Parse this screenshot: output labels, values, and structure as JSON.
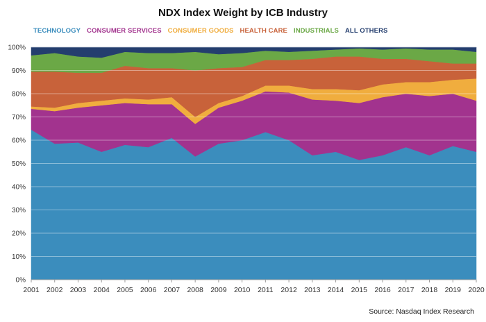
{
  "chart_data": {
    "type": "area",
    "stacked": true,
    "title": "NDX Index Weight by ICB Industry",
    "xlabel": "",
    "ylabel": "",
    "ylim": [
      0,
      100
    ],
    "y_tick_labels": [
      "0%",
      "10%",
      "20%",
      "30%",
      "40%",
      "50%",
      "60%",
      "70%",
      "80%",
      "90%",
      "100%"
    ],
    "x": [
      "2001",
      "2002",
      "2003",
      "2004",
      "2005",
      "2006",
      "2007",
      "2008",
      "2009",
      "2010",
      "2011",
      "2012",
      "2013",
      "2014",
      "2015",
      "2016",
      "2017",
      "2018",
      "2019",
      "2020"
    ],
    "series": [
      {
        "name": "TECHNOLOGY",
        "color": "#3B8DBD",
        "values": [
          64.5,
          58.5,
          59.0,
          55.0,
          58.0,
          57.0,
          61.0,
          53.0,
          58.5,
          60.0,
          63.5,
          60.0,
          53.5,
          55.0,
          51.5,
          53.5,
          57.0,
          53.5,
          57.5,
          55.0
        ]
      },
      {
        "name": "CONSUMER SERVICES",
        "color": "#A2338E",
        "values": [
          9.0,
          14.0,
          15.0,
          20.0,
          18.0,
          18.5,
          14.5,
          14.0,
          15.5,
          17.0,
          17.5,
          20.5,
          24.0,
          22.0,
          24.5,
          25.0,
          23.0,
          25.5,
          22.5,
          22.0
        ]
      },
      {
        "name": "CONSUMER GOODS",
        "color": "#F0AD3E",
        "values": [
          1.0,
          1.5,
          2.0,
          2.0,
          2.0,
          2.0,
          3.0,
          3.0,
          2.0,
          2.0,
          2.5,
          3.0,
          4.5,
          5.0,
          5.5,
          5.5,
          5.0,
          6.0,
          6.0,
          9.5
        ]
      },
      {
        "name": "HEALTH CARE",
        "color": "#C8623A",
        "values": [
          15.0,
          15.5,
          13.0,
          12.0,
          14.0,
          13.5,
          12.5,
          20.0,
          15.0,
          12.5,
          11.0,
          11.0,
          13.0,
          14.0,
          14.5,
          11.0,
          10.0,
          9.0,
          7.0,
          6.5
        ]
      },
      {
        "name": "INDUSTRIALS",
        "color": "#6BA846",
        "values": [
          7.0,
          8.0,
          7.0,
          6.5,
          6.0,
          6.5,
          6.5,
          8.0,
          6.0,
          6.0,
          4.0,
          3.5,
          3.5,
          3.0,
          3.5,
          4.0,
          4.5,
          5.0,
          6.0,
          5.0
        ]
      },
      {
        "name": "ALL OTHERS",
        "color": "#243E6E",
        "values": [
          3.5,
          2.5,
          4.0,
          4.5,
          2.0,
          2.5,
          2.5,
          2.0,
          3.0,
          2.5,
          1.5,
          2.0,
          1.5,
          1.0,
          0.5,
          1.0,
          0.5,
          1.0,
          1.0,
          2.0
        ]
      }
    ],
    "source": "Source: Nasdaq Index Research"
  }
}
